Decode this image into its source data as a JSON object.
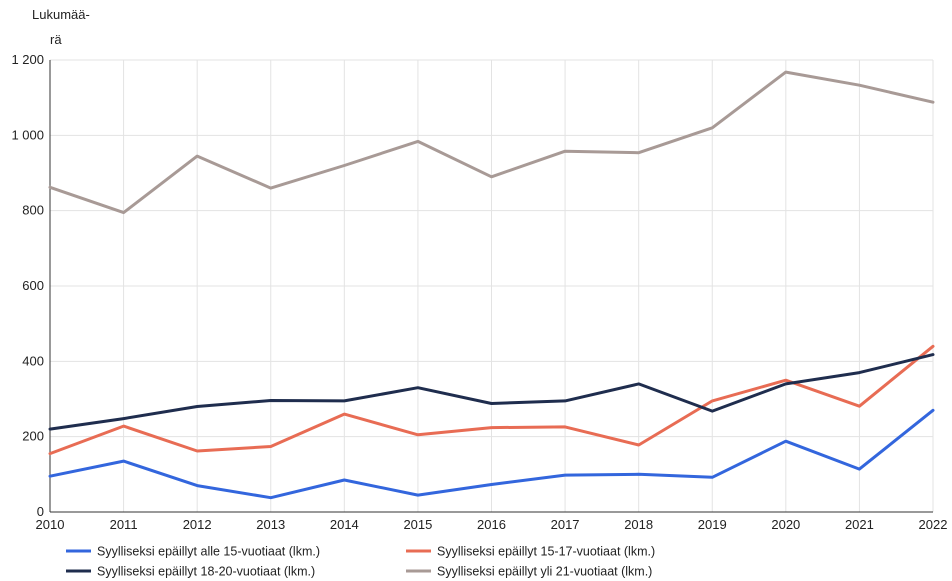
{
  "chart_data": {
    "type": "line",
    "title": "",
    "ylabel_lines": [
      "Lukumää-",
      "rä"
    ],
    "xlabel": "",
    "x": [
      "2010",
      "2011",
      "2012",
      "2013",
      "2014",
      "2015",
      "2016",
      "2017",
      "2018",
      "2019",
      "2020",
      "2021",
      "2022"
    ],
    "ylim": [
      0,
      1200
    ],
    "yticks": [
      0,
      200,
      400,
      600,
      800,
      1000,
      1200
    ],
    "ytick_labels": [
      "0",
      "200",
      "400",
      "600",
      "800",
      "1 000",
      "1 200"
    ],
    "grid": true,
    "legend_position": "bottom",
    "series": [
      {
        "name": "Syylliseksi epäillyt alle 15-vuotiaat (lkm.)",
        "color": "#3366dd",
        "values": [
          95,
          135,
          70,
          38,
          85,
          45,
          73,
          98,
          100,
          92,
          188,
          114,
          270
        ]
      },
      {
        "name": "Syylliseksi epäillyt 15-17-vuotiaat (lkm.)",
        "color": "#e86c54",
        "values": [
          155,
          228,
          162,
          174,
          260,
          205,
          224,
          226,
          178,
          295,
          350,
          281,
          440
        ]
      },
      {
        "name": "Syylliseksi epäillyt 18-20-vuotiaat (lkm.)",
        "color": "#1f2d4e",
        "values": [
          220,
          248,
          280,
          296,
          295,
          330,
          288,
          295,
          340,
          268,
          340,
          370,
          418
        ]
      },
      {
        "name": "Syylliseksi epäillyt yli 21-vuotiaat (lkm.)",
        "color": "#a89a96",
        "values": [
          862,
          795,
          945,
          860,
          920,
          984,
          890,
          958,
          954,
          1020,
          1168,
          1133,
          1088
        ]
      }
    ]
  }
}
